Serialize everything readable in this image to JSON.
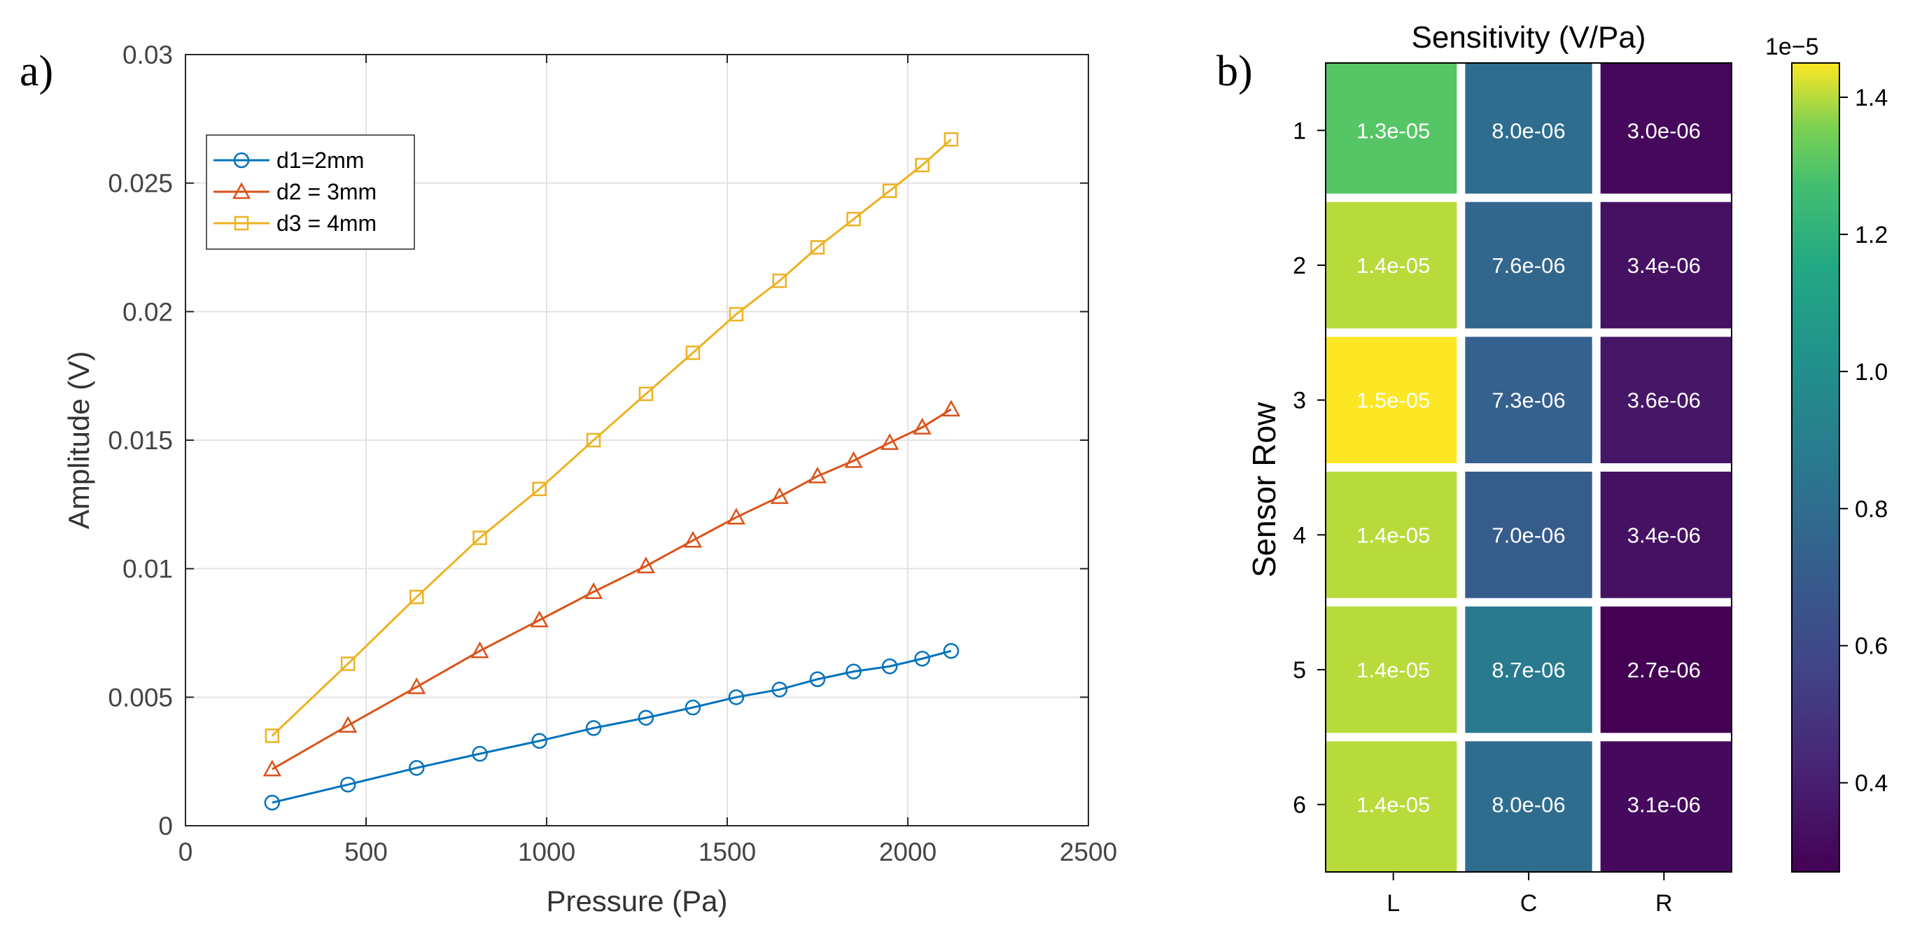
{
  "panels": {
    "a_label": "a)",
    "b_label": "b)"
  },
  "chart_data": [
    {
      "type": "line",
      "title": "",
      "xlabel": "Pressure (Pa)",
      "ylabel": "Amplitude (V)",
      "xlim": [
        0,
        2500
      ],
      "ylim": [
        0,
        0.03
      ],
      "xticks": [
        0,
        500,
        1000,
        1500,
        2000,
        2500
      ],
      "xtick_labels": [
        "0",
        "500",
        "1000",
        "1500",
        "2000",
        "2500"
      ],
      "yticks": [
        0,
        0.005,
        0.01,
        0.015,
        0.02,
        0.025,
        0.03
      ],
      "ytick_labels": [
        "0",
        "0.005",
        "0.01",
        "0.015",
        "0.02",
        "0.025",
        "0.03"
      ],
      "grid": true,
      "legend_position": "top-left",
      "x": [
        240,
        450,
        640,
        815,
        980,
        1130,
        1275,
        1405,
        1525,
        1645,
        1750,
        1850,
        1950,
        2040,
        2120
      ],
      "series": [
        {
          "name": "d1=2mm",
          "color": "#0072BD",
          "marker": "circle",
          "values": [
            0.0009,
            0.0016,
            0.00225,
            0.0028,
            0.0033,
            0.0038,
            0.0042,
            0.0046,
            0.005,
            0.0053,
            0.0057,
            0.006,
            0.0062,
            0.0065,
            0.0068
          ]
        },
        {
          "name": "d2 = 3mm",
          "color": "#D95319",
          "marker": "triangle",
          "values": [
            0.0022,
            0.0039,
            0.0054,
            0.0068,
            0.008,
            0.0091,
            0.0101,
            0.0111,
            0.012,
            0.0128,
            0.0136,
            0.0142,
            0.0149,
            0.0155,
            0.0162
          ]
        },
        {
          "name": "d3 = 4mm",
          "color": "#EDB120",
          "marker": "square",
          "values": [
            0.0035,
            0.0063,
            0.0089,
            0.0112,
            0.0131,
            0.015,
            0.0168,
            0.0184,
            0.0199,
            0.0212,
            0.0225,
            0.0236,
            0.0247,
            0.0257,
            0.0267
          ]
        }
      ]
    },
    {
      "type": "heatmap",
      "title": "Sensitivity (V/Pa)",
      "xlabel": "",
      "ylabel": "Sensor Row",
      "columns": [
        "L",
        "C",
        "R"
      ],
      "rows": [
        "1",
        "2",
        "3",
        "4",
        "5",
        "6"
      ],
      "values": [
        [
          1.3e-05,
          8e-06,
          3e-06
        ],
        [
          1.4e-05,
          7.6e-06,
          3.4e-06
        ],
        [
          1.5e-05,
          7.3e-06,
          3.6e-06
        ],
        [
          1.4e-05,
          7e-06,
          3.4e-06
        ],
        [
          1.4e-05,
          8.7e-06,
          2.7e-06
        ],
        [
          1.4e-05,
          8e-06,
          3.1e-06
        ]
      ],
      "cell_labels": [
        [
          "1.3e-05",
          "8.0e-06",
          "3.0e-06"
        ],
        [
          "1.4e-05",
          "7.6e-06",
          "3.4e-06"
        ],
        [
          "1.5e-05",
          "7.3e-06",
          "3.6e-06"
        ],
        [
          "1.4e-05",
          "7.0e-06",
          "3.4e-06"
        ],
        [
          "1.4e-05",
          "8.7e-06",
          "2.7e-06"
        ],
        [
          "1.4e-05",
          "8.0e-06",
          "3.1e-06"
        ]
      ],
      "colormap": "viridis",
      "colorbar": {
        "range": [
          2.7e-06,
          1.45e-05
        ],
        "ticks": [
          0.4,
          0.6,
          0.8,
          1.0,
          1.2,
          1.4
        ],
        "tick_labels": [
          "0.4",
          "0.6",
          "0.8",
          "1.0",
          "1.2",
          "1.4"
        ],
        "scale_label": "1e−5"
      }
    }
  ]
}
